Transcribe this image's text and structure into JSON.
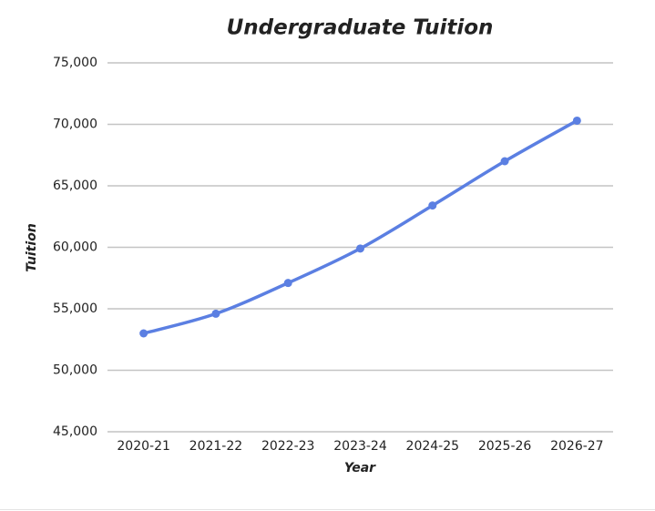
{
  "chart_data": {
    "type": "line",
    "title": "Undergraduate Tuition",
    "x_label": "Year",
    "y_label": "Tuition",
    "categories": [
      "2020-21",
      "2021-22",
      "2022-23",
      "2023-24",
      "2024-25",
      "2025-26",
      "2026-27"
    ],
    "series": [
      {
        "name": "Tuition",
        "color": "#5b7fe2",
        "values": [
          53000,
          54600,
          57100,
          59900,
          63400,
          67000,
          70300
        ]
      }
    ],
    "ylim": [
      45000,
      75000
    ],
    "yticks": [
      {
        "value": 45000,
        "label": "45,000"
      },
      {
        "value": 50000,
        "label": "50,000"
      },
      {
        "value": 55000,
        "label": "55,000"
      },
      {
        "value": 60000,
        "label": "60,000"
      },
      {
        "value": 65000,
        "label": "65,000"
      },
      {
        "value": 70000,
        "label": "70,000"
      },
      {
        "value": 75000,
        "label": "75,000"
      }
    ],
    "grid": true
  }
}
